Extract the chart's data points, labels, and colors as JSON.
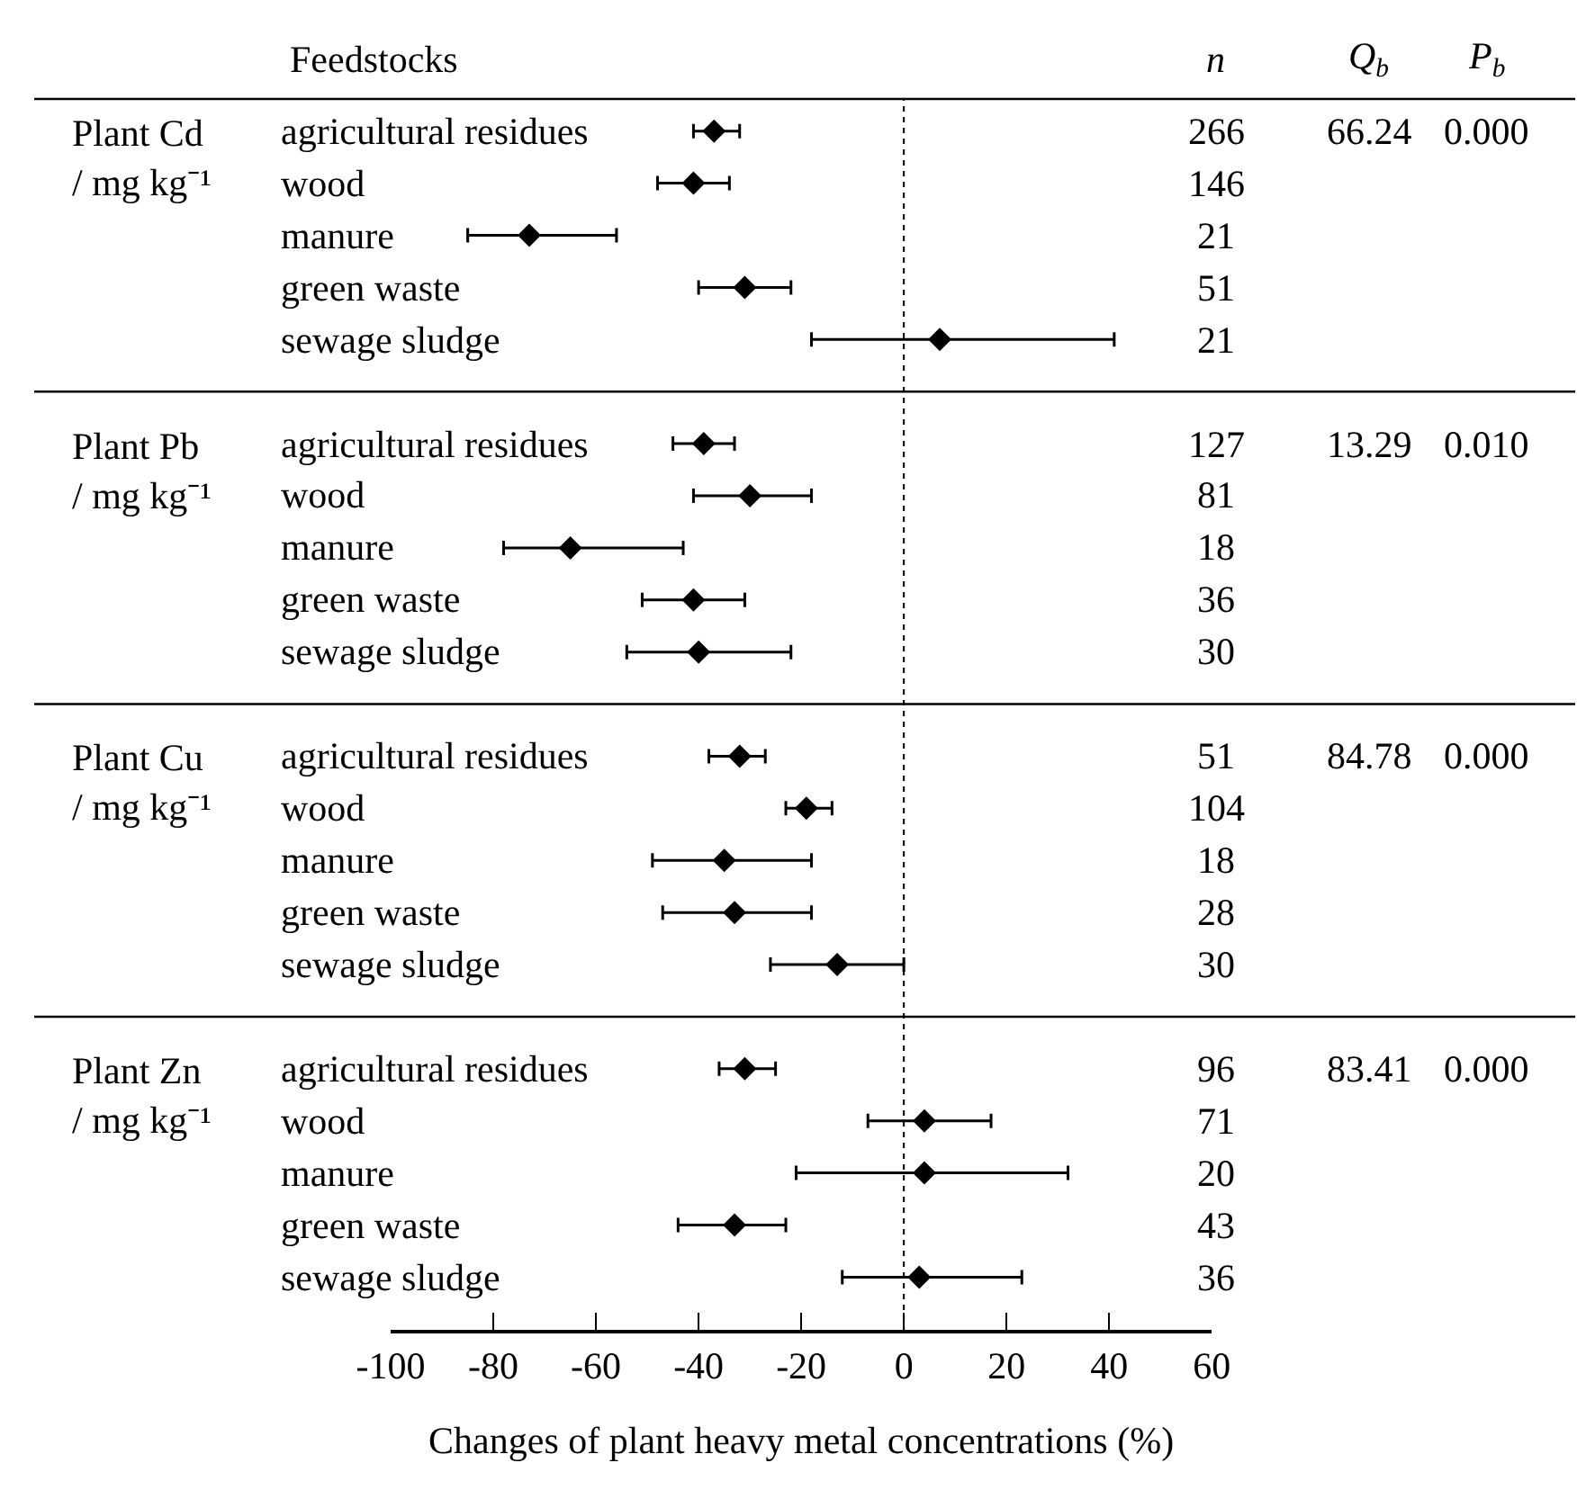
{
  "chart_data": [
    {
      "type": "scatter",
      "orientation": "horizontal",
      "ylabel": "Feedstocks",
      "xlabel": "Changes of plant heavy metal concentrations (%)",
      "categories": [
        "agricultural residues",
        "wood",
        "manure",
        "green waste",
        "sewage sludge",
        null,
        "agricultural residues",
        "wood",
        "manure",
        "green waste",
        "sewage sludge",
        null,
        "agricultural residues",
        "wood",
        "manure",
        "green waste",
        "sewage sludge",
        null,
        "agricultural residues",
        "wood",
        "manure",
        "green waste",
        "sewage sludge"
      ],
      "values": [
        -37,
        -41,
        -73,
        -31,
        7,
        null,
        -39,
        -30,
        -65,
        -41,
        -40,
        null,
        -32,
        -19,
        -35,
        -33,
        -13,
        null,
        -31,
        4,
        4,
        -33,
        3
      ],
      "errors": [
        [
          -41,
          -32
        ],
        [
          -48,
          -34
        ],
        [
          -85,
          -56
        ],
        [
          -40,
          -22
        ],
        [
          -18,
          41
        ],
        null,
        [
          -45,
          -33
        ],
        [
          -41,
          -18
        ],
        [
          -78,
          -43
        ],
        [
          -51,
          -31
        ],
        [
          -54,
          -22
        ],
        null,
        [
          -38,
          -27
        ],
        [
          -23,
          -14
        ],
        [
          -49,
          -18
        ],
        [
          -47,
          -18
        ],
        [
          -26,
          0
        ],
        null,
        [
          -36,
          -25
        ],
        [
          -7,
          17
        ],
        [
          -21,
          32
        ],
        [
          -44,
          -23
        ],
        [
          -12,
          23
        ]
      ],
      "annotations": [
        "Plant Cd\n/ mg kg⁻¹",
        "Plant Pb\n/ mg kg⁻¹",
        "Plant Cu\n/ mg kg⁻¹",
        "Plant Zn\n/ mg kg⁻¹"
      ],
      "xlim": [
        -100,
        60
      ],
      "xticks": [
        -100,
        -80,
        -60,
        -40,
        -20,
        0,
        20,
        40,
        60
      ],
      "marker": "diamond",
      "color": "#000000",
      "ref_lines": [
        {
          "axis": "x",
          "value": 0,
          "line_style": "dotted"
        }
      ]
    },
    {
      "type": "other",
      "annotations": [
        "n",
        "Q$_{b}$",
        "P$_{b}$",
        "266",
        "146",
        "21",
        "51",
        "21",
        "66.24",
        "0.000",
        "127",
        "81",
        "18",
        "36",
        "30",
        "13.29",
        "0.010",
        "51",
        "104",
        "18",
        "28",
        "30",
        "84.78",
        "0.000",
        "96",
        "71",
        "20",
        "43",
        "36",
        "83.41",
        "0.000"
      ]
    }
  ]
}
